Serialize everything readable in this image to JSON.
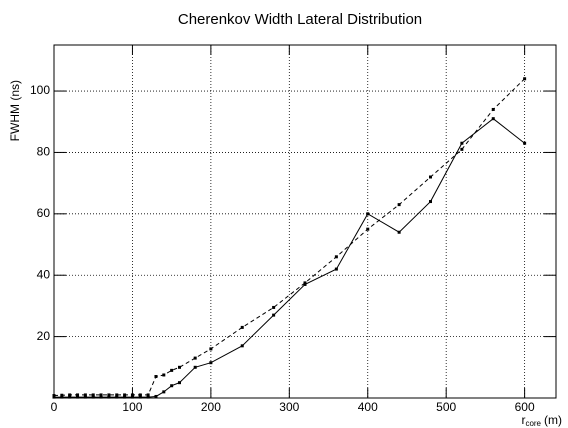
{
  "chart_data": {
    "type": "line",
    "title": "Cherenkov Width Lateral Distribution",
    "ylabel": "FWHM (ns)",
    "xlabel": {
      "main": "r",
      "sub": "core",
      "unit": "(m)"
    },
    "x": [
      0,
      10,
      20,
      30,
      40,
      50,
      60,
      70,
      80,
      90,
      100,
      110,
      120,
      130,
      140,
      150,
      160,
      180,
      200,
      240,
      280,
      320,
      360,
      400,
      440,
      480,
      520,
      560,
      600
    ],
    "series": [
      {
        "color": "#000000",
        "dash": false,
        "values": [
          0.3,
          0.3,
          0.3,
          0.3,
          0.3,
          0.3,
          0.3,
          0.3,
          0.3,
          0.3,
          0.3,
          0.3,
          0.3,
          0.5,
          2,
          4,
          5,
          10,
          11.5,
          17,
          27,
          37,
          42,
          60,
          54,
          64,
          83,
          91,
          83
        ]
      },
      {
        "color": "#000000",
        "dash": true,
        "values": [
          0.8,
          0.9,
          1,
          1,
          1,
          1,
          1,
          1,
          1,
          1,
          1,
          1,
          1,
          7,
          7.5,
          9,
          10,
          13,
          16,
          23,
          29.5,
          37.5,
          46,
          55,
          63,
          72,
          81,
          94,
          104
        ]
      }
    ],
    "xlim": [
      0,
      640
    ],
    "ylim": [
      0,
      115
    ],
    "xticks": [
      0,
      100,
      200,
      300,
      400,
      500,
      600
    ],
    "yticks": [
      20,
      40,
      60,
      80,
      100
    ],
    "grid": true
  }
}
